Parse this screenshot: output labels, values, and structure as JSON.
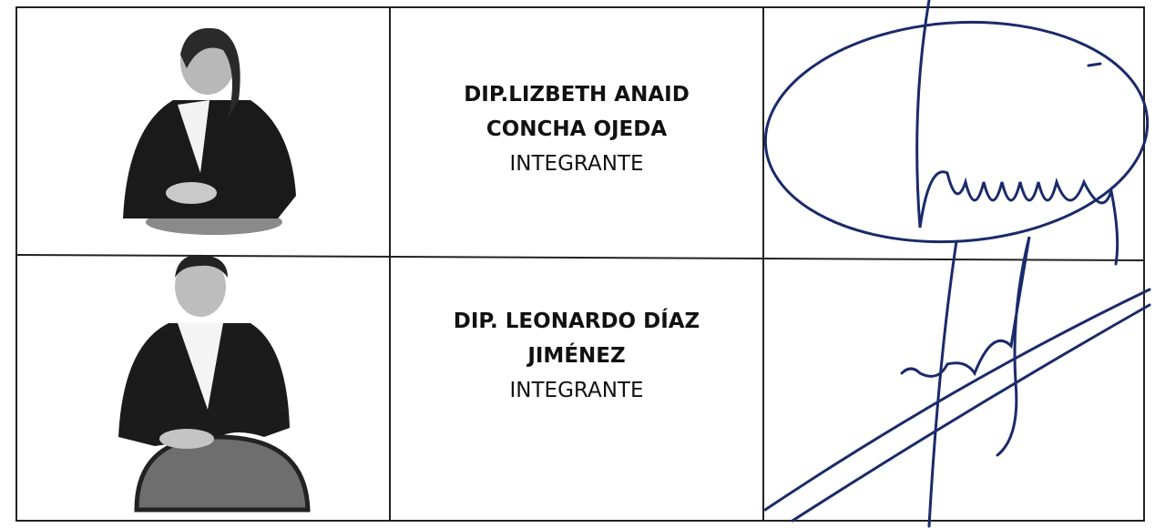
{
  "table": {
    "rows": [
      {
        "name": [
          "DIP.LIZBETH ANAID",
          "CONCHA OJEDA"
        ],
        "role": "INTEGRANTE"
      },
      {
        "name": [
          "DIP. LEONARDO DÍAZ",
          "JIMÉNEZ"
        ],
        "role": "INTEGRANTE"
      }
    ]
  }
}
